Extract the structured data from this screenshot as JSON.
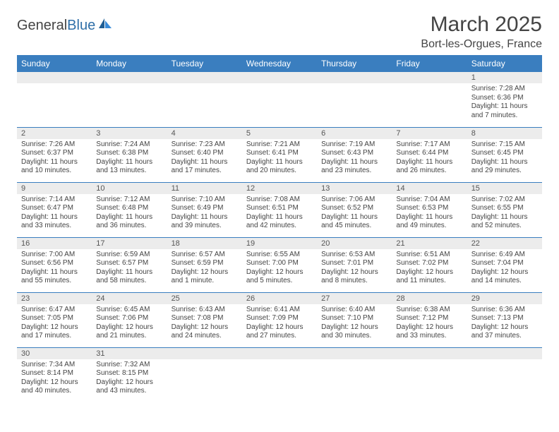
{
  "brand": {
    "part1": "General",
    "part2": "Blue"
  },
  "title": {
    "month": "March 2025",
    "location": "Bort-les-Orgues, France"
  },
  "headerColor": "#3a7ebf",
  "dayNames": [
    "Sunday",
    "Monday",
    "Tuesday",
    "Wednesday",
    "Thursday",
    "Friday",
    "Saturday"
  ],
  "weeks": [
    [
      {
        "num": "",
        "lines": []
      },
      {
        "num": "",
        "lines": []
      },
      {
        "num": "",
        "lines": []
      },
      {
        "num": "",
        "lines": []
      },
      {
        "num": "",
        "lines": []
      },
      {
        "num": "",
        "lines": []
      },
      {
        "num": "1",
        "lines": [
          "Sunrise: 7:28 AM",
          "Sunset: 6:36 PM",
          "Daylight: 11 hours",
          "and 7 minutes."
        ]
      }
    ],
    [
      {
        "num": "2",
        "lines": [
          "Sunrise: 7:26 AM",
          "Sunset: 6:37 PM",
          "Daylight: 11 hours",
          "and 10 minutes."
        ]
      },
      {
        "num": "3",
        "lines": [
          "Sunrise: 7:24 AM",
          "Sunset: 6:38 PM",
          "Daylight: 11 hours",
          "and 13 minutes."
        ]
      },
      {
        "num": "4",
        "lines": [
          "Sunrise: 7:23 AM",
          "Sunset: 6:40 PM",
          "Daylight: 11 hours",
          "and 17 minutes."
        ]
      },
      {
        "num": "5",
        "lines": [
          "Sunrise: 7:21 AM",
          "Sunset: 6:41 PM",
          "Daylight: 11 hours",
          "and 20 minutes."
        ]
      },
      {
        "num": "6",
        "lines": [
          "Sunrise: 7:19 AM",
          "Sunset: 6:43 PM",
          "Daylight: 11 hours",
          "and 23 minutes."
        ]
      },
      {
        "num": "7",
        "lines": [
          "Sunrise: 7:17 AM",
          "Sunset: 6:44 PM",
          "Daylight: 11 hours",
          "and 26 minutes."
        ]
      },
      {
        "num": "8",
        "lines": [
          "Sunrise: 7:15 AM",
          "Sunset: 6:45 PM",
          "Daylight: 11 hours",
          "and 29 minutes."
        ]
      }
    ],
    [
      {
        "num": "9",
        "lines": [
          "Sunrise: 7:14 AM",
          "Sunset: 6:47 PM",
          "Daylight: 11 hours",
          "and 33 minutes."
        ]
      },
      {
        "num": "10",
        "lines": [
          "Sunrise: 7:12 AM",
          "Sunset: 6:48 PM",
          "Daylight: 11 hours",
          "and 36 minutes."
        ]
      },
      {
        "num": "11",
        "lines": [
          "Sunrise: 7:10 AM",
          "Sunset: 6:49 PM",
          "Daylight: 11 hours",
          "and 39 minutes."
        ]
      },
      {
        "num": "12",
        "lines": [
          "Sunrise: 7:08 AM",
          "Sunset: 6:51 PM",
          "Daylight: 11 hours",
          "and 42 minutes."
        ]
      },
      {
        "num": "13",
        "lines": [
          "Sunrise: 7:06 AM",
          "Sunset: 6:52 PM",
          "Daylight: 11 hours",
          "and 45 minutes."
        ]
      },
      {
        "num": "14",
        "lines": [
          "Sunrise: 7:04 AM",
          "Sunset: 6:53 PM",
          "Daylight: 11 hours",
          "and 49 minutes."
        ]
      },
      {
        "num": "15",
        "lines": [
          "Sunrise: 7:02 AM",
          "Sunset: 6:55 PM",
          "Daylight: 11 hours",
          "and 52 minutes."
        ]
      }
    ],
    [
      {
        "num": "16",
        "lines": [
          "Sunrise: 7:00 AM",
          "Sunset: 6:56 PM",
          "Daylight: 11 hours",
          "and 55 minutes."
        ]
      },
      {
        "num": "17",
        "lines": [
          "Sunrise: 6:59 AM",
          "Sunset: 6:57 PM",
          "Daylight: 11 hours",
          "and 58 minutes."
        ]
      },
      {
        "num": "18",
        "lines": [
          "Sunrise: 6:57 AM",
          "Sunset: 6:59 PM",
          "Daylight: 12 hours",
          "and 1 minute."
        ]
      },
      {
        "num": "19",
        "lines": [
          "Sunrise: 6:55 AM",
          "Sunset: 7:00 PM",
          "Daylight: 12 hours",
          "and 5 minutes."
        ]
      },
      {
        "num": "20",
        "lines": [
          "Sunrise: 6:53 AM",
          "Sunset: 7:01 PM",
          "Daylight: 12 hours",
          "and 8 minutes."
        ]
      },
      {
        "num": "21",
        "lines": [
          "Sunrise: 6:51 AM",
          "Sunset: 7:02 PM",
          "Daylight: 12 hours",
          "and 11 minutes."
        ]
      },
      {
        "num": "22",
        "lines": [
          "Sunrise: 6:49 AM",
          "Sunset: 7:04 PM",
          "Daylight: 12 hours",
          "and 14 minutes."
        ]
      }
    ],
    [
      {
        "num": "23",
        "lines": [
          "Sunrise: 6:47 AM",
          "Sunset: 7:05 PM",
          "Daylight: 12 hours",
          "and 17 minutes."
        ]
      },
      {
        "num": "24",
        "lines": [
          "Sunrise: 6:45 AM",
          "Sunset: 7:06 PM",
          "Daylight: 12 hours",
          "and 21 minutes."
        ]
      },
      {
        "num": "25",
        "lines": [
          "Sunrise: 6:43 AM",
          "Sunset: 7:08 PM",
          "Daylight: 12 hours",
          "and 24 minutes."
        ]
      },
      {
        "num": "26",
        "lines": [
          "Sunrise: 6:41 AM",
          "Sunset: 7:09 PM",
          "Daylight: 12 hours",
          "and 27 minutes."
        ]
      },
      {
        "num": "27",
        "lines": [
          "Sunrise: 6:40 AM",
          "Sunset: 7:10 PM",
          "Daylight: 12 hours",
          "and 30 minutes."
        ]
      },
      {
        "num": "28",
        "lines": [
          "Sunrise: 6:38 AM",
          "Sunset: 7:12 PM",
          "Daylight: 12 hours",
          "and 33 minutes."
        ]
      },
      {
        "num": "29",
        "lines": [
          "Sunrise: 6:36 AM",
          "Sunset: 7:13 PM",
          "Daylight: 12 hours",
          "and 37 minutes."
        ]
      }
    ],
    [
      {
        "num": "30",
        "lines": [
          "Sunrise: 7:34 AM",
          "Sunset: 8:14 PM",
          "Daylight: 12 hours",
          "and 40 minutes."
        ]
      },
      {
        "num": "31",
        "lines": [
          "Sunrise: 7:32 AM",
          "Sunset: 8:15 PM",
          "Daylight: 12 hours",
          "and 43 minutes."
        ]
      },
      {
        "num": "",
        "lines": []
      },
      {
        "num": "",
        "lines": []
      },
      {
        "num": "",
        "lines": []
      },
      {
        "num": "",
        "lines": []
      },
      {
        "num": "",
        "lines": []
      }
    ]
  ]
}
